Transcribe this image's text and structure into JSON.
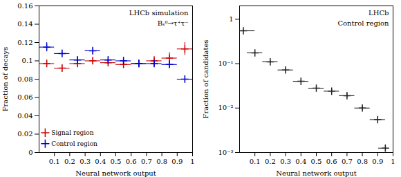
{
  "chart_data": [
    {
      "type": "errorbar",
      "annotations": [
        "LHCb simulation",
        "Bₛ⁰→τ⁺τ⁻"
      ],
      "xlabel": "Neural network output",
      "ylabel": "Fraction of decays",
      "xlim": [
        0,
        1.0
      ],
      "ylim": [
        0,
        0.16
      ],
      "xticks": [
        0.1,
        0.2,
        0.3,
        0.4,
        0.5,
        0.6,
        0.7,
        0.8,
        0.9,
        1
      ],
      "yticks": [
        0,
        0.02,
        0.04,
        0.06,
        0.08,
        0.1,
        0.12,
        0.14,
        0.16
      ],
      "marker": "plus",
      "legend": "lower left",
      "series": [
        {
          "name": "Signal region",
          "color": "#cc0000",
          "x": [
            0.05,
            0.15,
            0.25,
            0.35,
            0.45,
            0.55,
            0.65,
            0.75,
            0.85,
            0.95
          ],
          "values": [
            0.097,
            0.092,
            0.097,
            0.1,
            0.098,
            0.096,
            0.097,
            0.1,
            0.103,
            0.113
          ],
          "xerr": [
            0.05,
            0.05,
            0.05,
            0.05,
            0.05,
            0.05,
            0.05,
            0.05,
            0.05,
            0.05
          ],
          "yerr": [
            0.004,
            0.004,
            0.004,
            0.004,
            0.004,
            0.004,
            0.004,
            0.005,
            0.006,
            0.007
          ]
        },
        {
          "name": "Control region",
          "color": "#0000cc",
          "x": [
            0.05,
            0.15,
            0.25,
            0.35,
            0.45,
            0.55,
            0.65,
            0.75,
            0.85,
            0.95
          ],
          "values": [
            0.115,
            0.108,
            0.101,
            0.111,
            0.101,
            0.1,
            0.097,
            0.097,
            0.096,
            0.08
          ],
          "xerr": [
            0.05,
            0.05,
            0.05,
            0.05,
            0.05,
            0.05,
            0.05,
            0.05,
            0.05,
            0.05
          ],
          "yerr": [
            0.005,
            0.004,
            0.004,
            0.004,
            0.004,
            0.004,
            0.004,
            0.004,
            0.004,
            0.004
          ]
        }
      ]
    },
    {
      "type": "errorbar",
      "annotations": [
        "LHCb",
        "Control region"
      ],
      "xlabel": "Neural network output",
      "ylabel": "Fraction of candidates",
      "log": "y",
      "xlim": [
        0,
        1.0
      ],
      "ylim": [
        0.001,
        2.0
      ],
      "xticks": [
        0.1,
        0.2,
        0.3,
        0.4,
        0.5,
        0.6,
        0.7,
        0.8,
        0.9,
        1
      ],
      "yticks": [
        {
          "value": 0.001,
          "label": "10⁻³"
        },
        {
          "value": 0.01,
          "label": "10⁻²"
        },
        {
          "value": 0.1,
          "label": "10⁻¹"
        },
        1
      ],
      "marker": "plus",
      "series": [
        {
          "color": "#222222",
          "x": [
            0.025,
            0.1,
            0.2,
            0.3,
            0.4,
            0.5,
            0.6,
            0.7,
            0.8,
            0.9,
            0.95
          ],
          "values": [
            0.55,
            0.175,
            0.11,
            0.072,
            0.04,
            0.028,
            0.024,
            0.019,
            0.01,
            0.0055,
            0.00125
          ],
          "xerr_lo": [
            0.025,
            0.05,
            0.05,
            0.05,
            0.05,
            0.05,
            0.05,
            0.05,
            0.05,
            0.05,
            0.045
          ],
          "xerr_hi": [
            0.075,
            0.05,
            0.05,
            0.05,
            0.05,
            0.05,
            0.05,
            0.05,
            0.05,
            0.05,
            0.005
          ],
          "yerr": [
            0.02,
            0.008,
            0.006,
            0.005,
            0.003,
            0.002,
            0.002,
            0.002,
            0.001,
            0.0005,
            0.0002
          ]
        }
      ]
    }
  ]
}
